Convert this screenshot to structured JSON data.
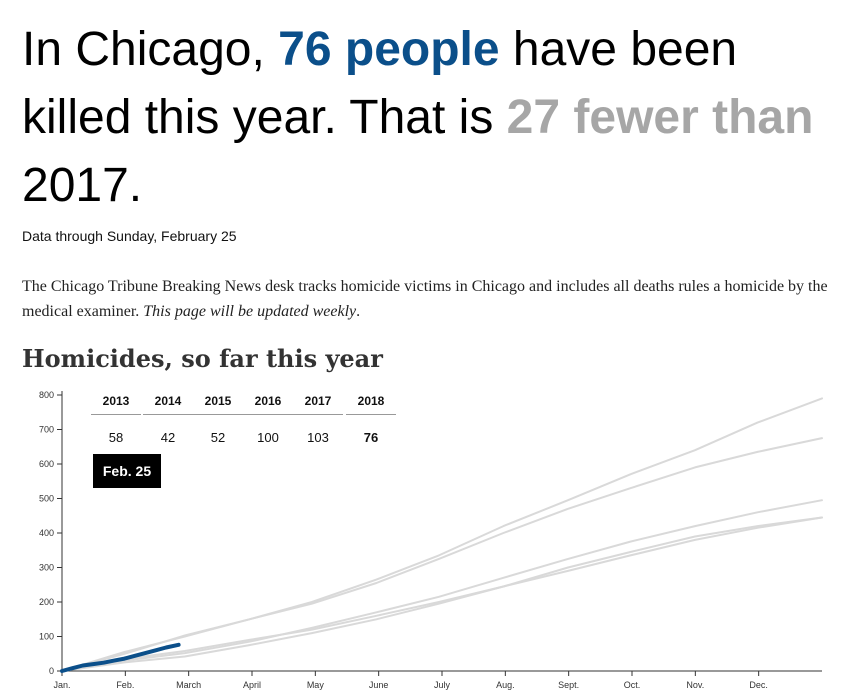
{
  "headline": {
    "prefix": "In Chicago, ",
    "count": "76 people",
    "middle": " have been killed this year. That is ",
    "comparison": "27 fewer than",
    "suffix": " 2017."
  },
  "dateline": "Data through Sunday, February 25",
  "intro": {
    "text": "The Chicago Tribune Breaking News desk tracks homicide victims in Chicago and includes all deaths rules a homicide by the medical examiner. ",
    "italic": "This page will be updated weekly",
    "end": "."
  },
  "chart_title": "Homicides, so far this year",
  "year_totals": [
    {
      "year": "2013",
      "value": "58"
    },
    {
      "year": "2014",
      "value": "42"
    },
    {
      "year": "2015",
      "value": "52"
    },
    {
      "year": "2016",
      "value": "100"
    },
    {
      "year": "2017",
      "value": "103"
    },
    {
      "year": "2018",
      "value": "76"
    }
  ],
  "date_badge": "Feb. 25",
  "colors": {
    "current_year": "#0b4f8a",
    "past_years": "#d9d9d9",
    "comparison_text": "#a6a6a6"
  },
  "chart_data": {
    "type": "line",
    "title": "Homicides, so far this year",
    "xlabel": "",
    "ylabel": "",
    "x_ticks": [
      "Jan.",
      "Feb.",
      "March",
      "April",
      "May",
      "June",
      "July",
      "Aug.",
      "Sept.",
      "Oct.",
      "Nov.",
      "Dec."
    ],
    "y_ticks": [
      0,
      100,
      200,
      300,
      400,
      500,
      600,
      700,
      800
    ],
    "xlim": [
      0,
      365
    ],
    "ylim": [
      0,
      800
    ],
    "grid": false,
    "series": [
      {
        "name": "2016",
        "x": [
          0,
          30,
          59,
          90,
          120,
          151,
          181,
          212,
          243,
          273,
          304,
          334,
          365
        ],
        "values": [
          0,
          55,
          100,
          150,
          200,
          265,
          335,
          420,
          495,
          570,
          640,
          720,
          790
        ]
      },
      {
        "name": "2017",
        "x": [
          0,
          30,
          59,
          90,
          120,
          151,
          181,
          212,
          243,
          273,
          304,
          334,
          365
        ],
        "values": [
          0,
          50,
          103,
          150,
          195,
          255,
          325,
          400,
          470,
          530,
          590,
          635,
          675
        ]
      },
      {
        "name": "2015",
        "x": [
          0,
          30,
          59,
          90,
          120,
          151,
          181,
          212,
          243,
          273,
          304,
          334,
          365
        ],
        "values": [
          0,
          30,
          52,
          85,
          125,
          170,
          215,
          270,
          325,
          375,
          420,
          460,
          495
        ]
      },
      {
        "name": "2013",
        "x": [
          0,
          30,
          59,
          90,
          120,
          151,
          181,
          212,
          243,
          273,
          304,
          334,
          365
        ],
        "values": [
          0,
          35,
          58,
          90,
          120,
          160,
          200,
          245,
          290,
          335,
          380,
          415,
          445
        ]
      },
      {
        "name": "2014",
        "x": [
          0,
          30,
          59,
          90,
          120,
          151,
          181,
          212,
          243,
          273,
          304,
          334,
          365
        ],
        "values": [
          0,
          25,
          42,
          75,
          110,
          150,
          195,
          245,
          300,
          345,
          390,
          420,
          445
        ]
      },
      {
        "name": "2018",
        "x": [
          0,
          5,
          10,
          15,
          20,
          25,
          30,
          35,
          40,
          45,
          50,
          56
        ],
        "values": [
          0,
          8,
          16,
          20,
          24,
          30,
          36,
          44,
          52,
          60,
          68,
          76
        ]
      }
    ]
  }
}
